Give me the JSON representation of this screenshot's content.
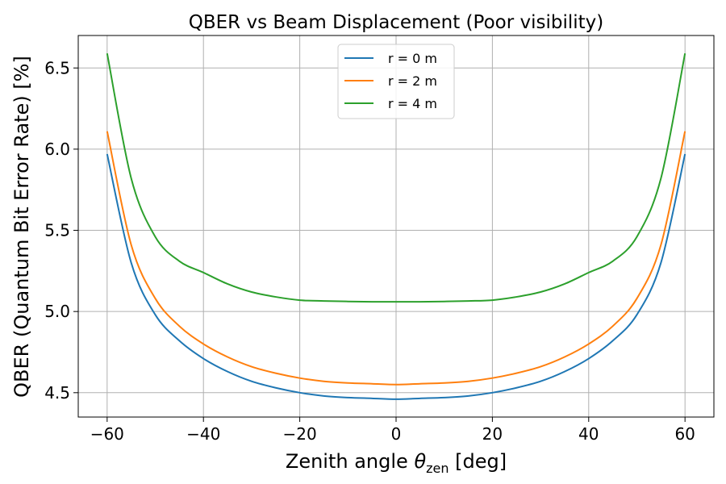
{
  "chart_data": {
    "type": "line",
    "title": "QBER vs Beam Displacement  (Poor visibility)",
    "xlabel": "Zenith angle θzen [deg]",
    "xlabel_parts": {
      "pre": "Zenith angle ",
      "sym": "θ",
      "sub": "zen",
      "post": " [deg]"
    },
    "ylabel": "QBER (Quantum Bit Error Rate) [%]",
    "xlim": [
      -66,
      66
    ],
    "ylim": [
      4.35,
      6.7
    ],
    "xticks": [
      -60,
      -40,
      -20,
      0,
      20,
      40,
      60
    ],
    "xtick_labels": [
      "−60",
      "−40",
      "−20",
      "0",
      "20",
      "40",
      "60"
    ],
    "yticks": [
      4.5,
      5.0,
      5.5,
      6.0,
      6.5
    ],
    "ytick_labels": [
      "4.5",
      "5.0",
      "5.5",
      "6.0",
      "6.5"
    ],
    "grid": true,
    "legend_position": "top-center",
    "x": [
      -60,
      -55,
      -50,
      -45,
      -40,
      -35,
      -30,
      -25,
      -20,
      -15,
      -10,
      -5,
      0,
      5,
      10,
      15,
      20,
      25,
      30,
      35,
      40,
      45,
      50,
      55,
      60
    ],
    "series": [
      {
        "name": "r = 0 m",
        "color": "#1f77b4",
        "values": [
          5.97,
          5.3,
          4.98,
          4.82,
          4.71,
          4.63,
          4.57,
          4.53,
          4.5,
          4.48,
          4.47,
          4.465,
          4.46,
          4.465,
          4.47,
          4.48,
          4.5,
          4.53,
          4.57,
          4.63,
          4.71,
          4.82,
          4.98,
          5.3,
          5.97
        ]
      },
      {
        "name": "r = 2 m",
        "color": "#ff7f0e",
        "values": [
          6.11,
          5.41,
          5.08,
          4.91,
          4.8,
          4.72,
          4.66,
          4.62,
          4.59,
          4.57,
          4.56,
          4.555,
          4.55,
          4.555,
          4.56,
          4.57,
          4.59,
          4.62,
          4.66,
          4.72,
          4.8,
          4.91,
          5.08,
          5.41,
          6.11
        ]
      },
      {
        "name": "r = 4 m",
        "color": "#2ca02c",
        "values": [
          6.59,
          5.82,
          5.46,
          5.31,
          5.24,
          5.17,
          5.12,
          5.09,
          5.07,
          5.065,
          5.062,
          5.06,
          5.06,
          5.06,
          5.062,
          5.065,
          5.07,
          5.09,
          5.12,
          5.17,
          5.24,
          5.31,
          5.46,
          5.82,
          6.59
        ]
      }
    ]
  }
}
